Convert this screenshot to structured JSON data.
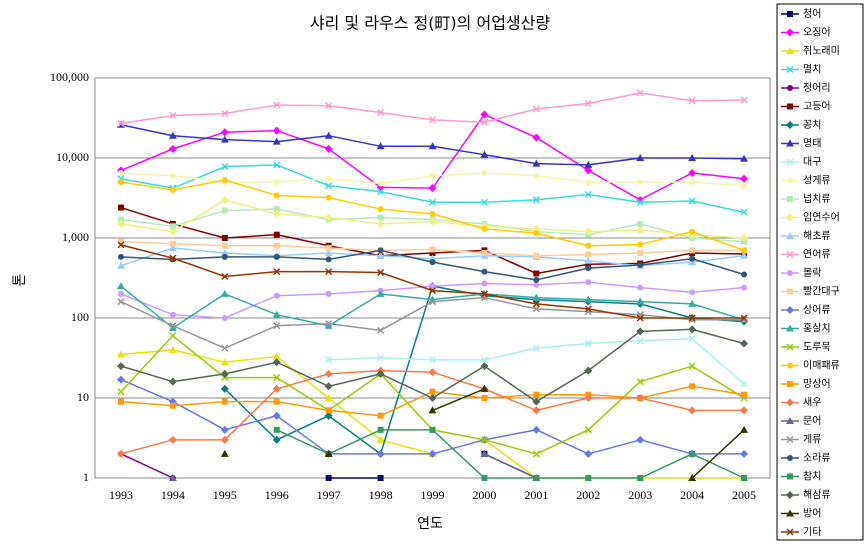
{
  "chart_data": {
    "type": "line",
    "title": "샤리 및 라우스 정(町)의 어업생산량",
    "x_label": "연도",
    "y_label": "톤",
    "log_scale": true,
    "grid": true,
    "legend": "right",
    "categories": [
      "1993",
      "1994",
      "1995",
      "1996",
      "1997",
      "1998",
      "1999",
      "2000",
      "2001",
      "2002",
      "2003",
      "2004",
      "2005"
    ],
    "ylim": [
      1,
      100000
    ],
    "yticks": [
      1,
      10,
      100,
      {
        "value": 1000,
        "label": "1,000"
      },
      {
        "value": 10000,
        "label": "10,000"
      },
      {
        "value": 100000,
        "label": "100,000"
      }
    ],
    "series": [
      {
        "name": "청어",
        "color": "#000080",
        "values": [
          null,
          null,
          null,
          null,
          1,
          1,
          null,
          2,
          1,
          null,
          null,
          null,
          null
        ]
      },
      {
        "name": "오징어",
        "color": "#ff00ff",
        "values": [
          7000,
          13000,
          21000,
          22000,
          13000,
          4300,
          4200,
          35000,
          18000,
          7000,
          3000,
          6500,
          5500
        ]
      },
      {
        "name": "쥐노래미",
        "color": "#e6e600",
        "values": [
          35,
          40,
          28,
          33,
          10,
          3,
          2,
          3,
          1,
          1,
          1,
          1,
          1
        ]
      },
      {
        "name": "멸치",
        "color": "#33dddd",
        "values": [
          5500,
          4200,
          7800,
          8200,
          4500,
          3800,
          2800,
          2800,
          3000,
          3500,
          2800,
          2900,
          2100
        ]
      },
      {
        "name": "정어리",
        "color": "#800080",
        "values": [
          2,
          1,
          null,
          null,
          null,
          null,
          null,
          null,
          null,
          null,
          null,
          null,
          null
        ]
      },
      {
        "name": "고등어",
        "color": "#800000",
        "values": [
          2400,
          1500,
          1000,
          1100,
          800,
          600,
          650,
          700,
          360,
          470,
          480,
          650,
          630
        ]
      },
      {
        "name": "꽁치",
        "color": "#008080",
        "values": [
          null,
          null,
          13,
          3,
          6,
          2,
          250,
          190,
          170,
          160,
          150,
          100,
          90
        ]
      },
      {
        "name": "명태",
        "color": "#3333cc",
        "values": [
          26000,
          19000,
          17000,
          16000,
          19000,
          14000,
          14000,
          11000,
          8500,
          8200,
          10000,
          10000,
          9800
        ]
      },
      {
        "name": "대구",
        "color": "#aaf0f0",
        "values": [
          null,
          null,
          null,
          null,
          30,
          32,
          30,
          30,
          42,
          48,
          52,
          55,
          15
        ]
      },
      {
        "name": "성게류",
        "color": "#f5f5b0",
        "values": [
          6500,
          6000,
          5000,
          5000,
          5500,
          4800,
          6000,
          6500,
          6000,
          5000,
          5000,
          5000,
          4500
        ]
      },
      {
        "name": "넙치류",
        "color": "#b8eab8",
        "values": [
          1700,
          1400,
          2200,
          2300,
          1700,
          1800,
          1700,
          1500,
          1200,
          1100,
          1500,
          1000,
          900
        ]
      },
      {
        "name": "임연수어",
        "color": "#f0f080",
        "values": [
          1500,
          1200,
          3000,
          2000,
          1800,
          1500,
          1600,
          1400,
          1300,
          1200,
          1250,
          1100,
          1000
        ]
      },
      {
        "name": "해초류",
        "color": "#99ccff",
        "values": [
          450,
          750,
          650,
          600,
          650,
          600,
          550,
          600,
          580,
          520,
          450,
          500,
          600
        ]
      },
      {
        "name": "연어류",
        "color": "#ff99cc",
        "values": [
          27000,
          34000,
          36000,
          46000,
          45000,
          37000,
          30000,
          28000,
          41000,
          48000,
          65000,
          52000,
          53000
        ]
      },
      {
        "name": "볼락",
        "color": "#cc99ff",
        "values": [
          200,
          110,
          100,
          190,
          200,
          220,
          250,
          270,
          260,
          280,
          240,
          210,
          240
        ]
      },
      {
        "name": "빨간대구",
        "color": "#ffcc99",
        "values": [
          900,
          850,
          800,
          800,
          750,
          700,
          720,
          650,
          600,
          620,
          650,
          700,
          700
        ]
      },
      {
        "name": "상어류",
        "color": "#6677ee",
        "values": [
          17,
          9,
          4,
          6,
          2,
          2,
          2,
          3,
          4,
          2,
          3,
          2,
          2
        ]
      },
      {
        "name": "홍살치",
        "color": "#33aaaa",
        "values": [
          250,
          75,
          200,
          110,
          80,
          200,
          170,
          200,
          180,
          170,
          160,
          150,
          95
        ]
      },
      {
        "name": "도루묵",
        "color": "#99cc00",
        "values": [
          12,
          60,
          18,
          18,
          7,
          20,
          4,
          3,
          2,
          4,
          16,
          25,
          10
        ]
      },
      {
        "name": "이매패류",
        "color": "#ffcc00",
        "values": [
          5000,
          4000,
          5300,
          3400,
          3200,
          2300,
          2000,
          1300,
          1150,
          800,
          830,
          1200,
          700
        ]
      },
      {
        "name": "망상어",
        "color": "#ff9900",
        "values": [
          9,
          8,
          9,
          9,
          7,
          6,
          12,
          10,
          11,
          11,
          10,
          14,
          11
        ]
      },
      {
        "name": "새우",
        "color": "#ff7744",
        "values": [
          2,
          3,
          3,
          13,
          20,
          22,
          21,
          13,
          7,
          10,
          10,
          7,
          7
        ]
      },
      {
        "name": "문어",
        "color": "#666699",
        "values": [
          null,
          1,
          null,
          null,
          null,
          null,
          null,
          2,
          1,
          null,
          null,
          null,
          null
        ]
      },
      {
        "name": "게류",
        "color": "#969696",
        "values": [
          160,
          80,
          42,
          80,
          85,
          70,
          160,
          180,
          130,
          120,
          110,
          95,
          95
        ]
      },
      {
        "name": "소라류",
        "color": "#335577",
        "values": [
          580,
          540,
          580,
          580,
          540,
          700,
          500,
          380,
          300,
          420,
          460,
          550,
          350
        ]
      },
      {
        "name": "참치",
        "color": "#339966",
        "values": [
          null,
          null,
          null,
          4,
          2,
          4,
          4,
          1,
          1,
          1,
          1,
          2,
          1
        ]
      },
      {
        "name": "해삼류",
        "color": "#556655",
        "values": [
          25,
          16,
          20,
          28,
          14,
          20,
          10,
          25,
          9,
          22,
          68,
          72,
          48
        ]
      },
      {
        "name": "방어",
        "color": "#333300",
        "values": [
          null,
          null,
          2,
          null,
          2,
          null,
          7,
          13,
          null,
          null,
          null,
          1,
          4
        ]
      },
      {
        "name": "기타",
        "color": "#993300",
        "values": [
          820,
          560,
          330,
          380,
          380,
          370,
          220,
          200,
          150,
          130,
          100,
          100,
          100
        ]
      }
    ]
  }
}
